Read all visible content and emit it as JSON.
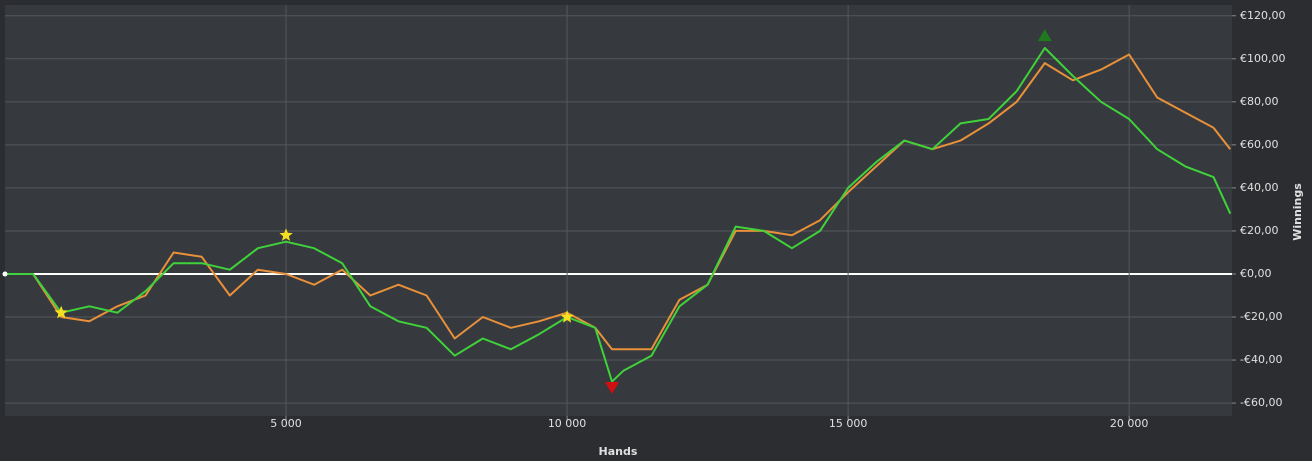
{
  "chart_data": {
    "type": "line",
    "x_label": "Hands",
    "y_label": "Winnings",
    "x": [
      0,
      500,
      1000,
      1500,
      2000,
      2500,
      3000,
      3500,
      4000,
      4500,
      5000,
      5500,
      6000,
      6500,
      7000,
      7500,
      8000,
      8500,
      9000,
      9500,
      10000,
      10500,
      10800,
      11000,
      11500,
      12000,
      12500,
      13000,
      13500,
      14000,
      14500,
      15000,
      15500,
      16000,
      16500,
      17000,
      17500,
      18000,
      18500,
      19000,
      19500,
      20000,
      20500,
      21000,
      21500,
      21800
    ],
    "series": [
      {
        "color": "#e8913a",
        "values": [
          0,
          0,
          -20,
          -22,
          -15,
          -10,
          10,
          8,
          -10,
          2,
          0,
          -5,
          2,
          -10,
          -5,
          -10,
          -30,
          -20,
          -25,
          -22,
          -18,
          -25,
          -35,
          -35,
          -35,
          -12,
          -5,
          20,
          20,
          18,
          25,
          38,
          50,
          62,
          58,
          62,
          70,
          80,
          98,
          90,
          95,
          102,
          82,
          75,
          68,
          58
        ]
      },
      {
        "color": "#3fd23a",
        "values": [
          0,
          0,
          -18,
          -15,
          -18,
          -8,
          5,
          5,
          2,
          12,
          15,
          12,
          5,
          -15,
          -22,
          -25,
          -38,
          -30,
          -35,
          -28,
          -20,
          -25,
          -50,
          -45,
          -38,
          -15,
          -5,
          22,
          20,
          12,
          20,
          40,
          52,
          62,
          58,
          70,
          72,
          85,
          105,
          92,
          80,
          72,
          58,
          50,
          45,
          28
        ]
      }
    ],
    "markers": [
      {
        "shape": "star",
        "color": "#f5e020",
        "x": 1000,
        "y": -18
      },
      {
        "shape": "star",
        "color": "#f5e020",
        "x": 5000,
        "y": 18
      },
      {
        "shape": "star",
        "color": "#f5e020",
        "x": 10000,
        "y": -20
      },
      {
        "shape": "triangle-up",
        "color": "#1f7a1f",
        "x": 18500,
        "y": 111
      },
      {
        "shape": "triangle-down",
        "color": "#d01010",
        "x": 10800,
        "y": -53
      }
    ],
    "xlim": [
      0,
      21830
    ],
    "xticks": [
      {
        "value": 5000,
        "label": "5 000"
      },
      {
        "value": 10000,
        "label": "10 000"
      },
      {
        "value": 15000,
        "label": "15 000"
      },
      {
        "value": 20000,
        "label": "20 000"
      }
    ],
    "ylim": [
      -66,
      125
    ],
    "yticks": [
      {
        "value": -60,
        "label": "-€60,00"
      },
      {
        "value": -40,
        "label": "-€40,00"
      },
      {
        "value": -20,
        "label": "-€20,00"
      },
      {
        "value": 0,
        "label": "€0,00"
      },
      {
        "value": 20,
        "label": "€20,00"
      },
      {
        "value": 40,
        "label": "€40,00"
      },
      {
        "value": 60,
        "label": "€60,00"
      },
      {
        "value": 80,
        "label": "€80,00"
      },
      {
        "value": 100,
        "label": "€100,00"
      },
      {
        "value": 120,
        "label": "€120,00"
      }
    ],
    "grid": true
  }
}
